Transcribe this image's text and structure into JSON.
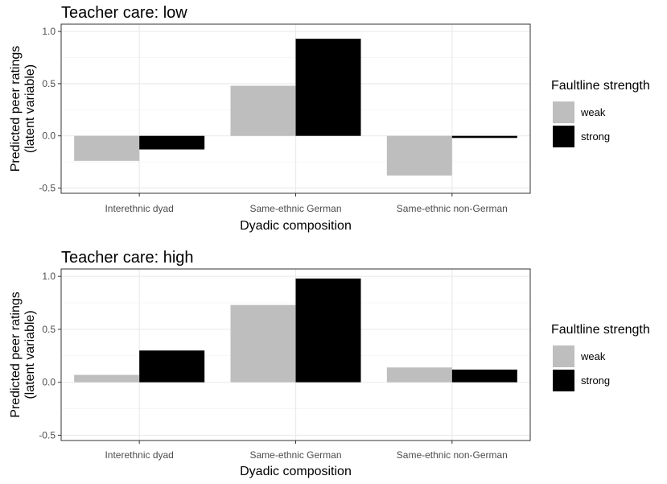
{
  "chart_data": {
    "type": "bar",
    "categories": [
      "Interethnic dyad",
      "Same-ethnic German",
      "Same-ethnic non-German"
    ],
    "xlabel": "Dyadic composition",
    "ylabel_lines": [
      "Predicted peer ratings",
      "(latent variable)"
    ],
    "ylim": [
      -0.55,
      1.07
    ],
    "yticks": [
      -0.5,
      0.0,
      0.5,
      1.0
    ],
    "ytick_labels": [
      "-0.5",
      "0.0",
      "0.5",
      "1.0"
    ],
    "grid": true,
    "legend": {
      "title": "Faultline strength",
      "entries": [
        {
          "label": "weak",
          "color": "#bebebe"
        },
        {
          "label": "strong",
          "color": "#000000"
        }
      ],
      "placement": "right"
    },
    "panels": [
      {
        "title": "Teacher care: low",
        "series": [
          {
            "name": "weak",
            "values": [
              -0.24,
              0.48,
              -0.38
            ]
          },
          {
            "name": "strong",
            "values": [
              -0.13,
              0.93,
              -0.02
            ]
          }
        ]
      },
      {
        "title": "Teacher care: high",
        "series": [
          {
            "name": "weak",
            "values": [
              0.07,
              0.73,
              0.14
            ]
          },
          {
            "name": "strong",
            "values": [
              0.3,
              0.98,
              0.12
            ]
          }
        ]
      }
    ]
  }
}
